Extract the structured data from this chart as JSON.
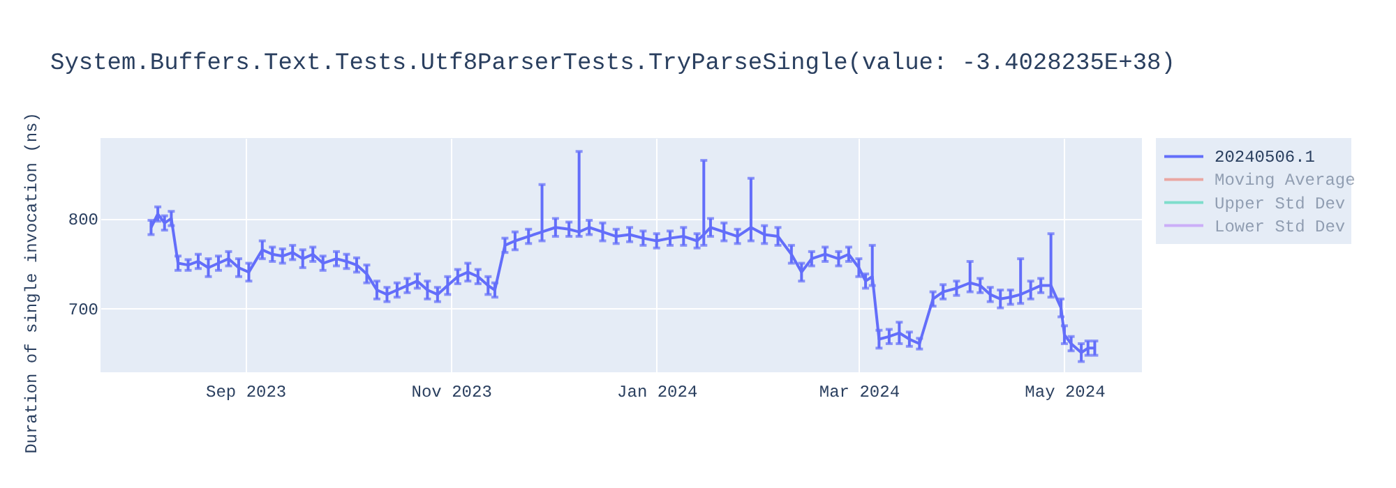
{
  "chart_data": {
    "type": "line",
    "title": "System.Buffers.Text.Tests.Utf8ParserTests.TryParseSingle(value: -3.4028235E+38)",
    "ylabel": "Duration of single invocation (ns)",
    "x": [
      "2023-08-04",
      "2023-08-06",
      "2023-08-08",
      "2023-08-10",
      "2023-08-12",
      "2023-08-15",
      "2023-08-18",
      "2023-08-21",
      "2023-08-24",
      "2023-08-27",
      "2023-08-30",
      "2023-09-02",
      "2023-09-06",
      "2023-09-09",
      "2023-09-12",
      "2023-09-15",
      "2023-09-18",
      "2023-09-21",
      "2023-09-24",
      "2023-09-28",
      "2023-10-01",
      "2023-10-04",
      "2023-10-07",
      "2023-10-10",
      "2023-10-13",
      "2023-10-16",
      "2023-10-19",
      "2023-10-22",
      "2023-10-25",
      "2023-10-28",
      "2023-10-31",
      "2023-11-03",
      "2023-11-06",
      "2023-11-09",
      "2023-11-12",
      "2023-11-14",
      "2023-11-17",
      "2023-11-20",
      "2023-11-24",
      "2023-11-28",
      "2023-12-02",
      "2023-12-06",
      "2023-12-09",
      "2023-12-12",
      "2023-12-16",
      "2023-12-20",
      "2023-12-24",
      "2023-12-28",
      "2024-01-01",
      "2024-01-05",
      "2024-01-09",
      "2024-01-13",
      "2024-01-15",
      "2024-01-17",
      "2024-01-21",
      "2024-01-25",
      "2024-01-29",
      "2024-02-02",
      "2024-02-06",
      "2024-02-10",
      "2024-02-13",
      "2024-02-16",
      "2024-02-20",
      "2024-02-24",
      "2024-02-27",
      "2024-03-01",
      "2024-03-03",
      "2024-03-05",
      "2024-03-07",
      "2024-03-10",
      "2024-03-13",
      "2024-03-16",
      "2024-03-19",
      "2024-03-23",
      "2024-03-26",
      "2024-03-30",
      "2024-04-03",
      "2024-04-06",
      "2024-04-09",
      "2024-04-12",
      "2024-04-15",
      "2024-04-18",
      "2024-04-21",
      "2024-04-24",
      "2024-04-27",
      "2024-04-30",
      "2024-05-01",
      "2024-05-03",
      "2024-05-06",
      "2024-05-08",
      "2024-05-10"
    ],
    "series": [
      {
        "name": "20240506.1",
        "color": "#636efa",
        "values": [
          790,
          805,
          795,
          800,
          750,
          748,
          752,
          745,
          750,
          755,
          745,
          740,
          765,
          760,
          758,
          762,
          755,
          760,
          750,
          755,
          752,
          748,
          738,
          720,
          715,
          720,
          725,
          730,
          720,
          715,
          725,
          735,
          740,
          735,
          725,
          720,
          770,
          775,
          780,
          785,
          790,
          788,
          785,
          790,
          785,
          780,
          782,
          778,
          775,
          778,
          780,
          775,
          782,
          790,
          785,
          780,
          790,
          782,
          780,
          760,
          740,
          755,
          760,
          755,
          760,
          745,
          730,
          735,
          665,
          668,
          672,
          665,
          660,
          710,
          718,
          722,
          728,
          725,
          715,
          710,
          712,
          715,
          720,
          725,
          725,
          700,
          670,
          660,
          650,
          655,
          655
        ],
        "errors": [
          8,
          8,
          8,
          8,
          8,
          6,
          8,
          10,
          8,
          8,
          10,
          10,
          10,
          8,
          8,
          8,
          10,
          8,
          8,
          8,
          8,
          8,
          10,
          10,
          8,
          8,
          8,
          8,
          10,
          8,
          10,
          8,
          10,
          8,
          10,
          8,
          8,
          10,
          8,
          [
            775,
            838
          ],
          10,
          8,
          [
            780,
            875
          ],
          8,
          10,
          8,
          8,
          8,
          8,
          8,
          10,
          8,
          [
            770,
            865
          ],
          10,
          10,
          8,
          [
            775,
            845
          ],
          10,
          10,
          10,
          10,
          8,
          8,
          8,
          8,
          10,
          8,
          [
            725,
            770
          ],
          10,
          8,
          12,
          8,
          6,
          8,
          8,
          8,
          [
            718,
            752
          ],
          8,
          8,
          10,
          8,
          [
            705,
            755
          ],
          10,
          8,
          [
            712,
            783
          ],
          10,
          10,
          8,
          10,
          8,
          8
        ]
      },
      {
        "name": "Moving Average",
        "color": "#ef553b",
        "values": [
          null,
          null,
          null,
          null,
          null,
          null,
          null,
          null,
          null,
          null,
          null,
          null,
          null,
          null,
          null,
          null,
          null,
          null,
          null,
          null,
          null,
          null,
          null,
          null,
          null,
          null,
          null,
          null,
          null,
          null,
          null,
          null,
          null,
          null,
          null,
          null,
          null,
          null,
          null,
          null,
          null,
          null,
          null,
          null,
          null,
          null,
          null,
          null,
          null,
          null,
          null,
          null,
          null,
          null,
          null,
          null,
          null,
          null,
          null,
          null,
          null,
          null,
          null,
          null,
          null,
          null,
          null,
          null,
          null,
          null,
          null,
          null,
          null,
          null,
          null,
          null,
          null,
          null,
          null,
          null,
          null,
          null,
          null,
          null,
          null,
          null,
          null,
          null,
          null,
          null,
          null
        ]
      },
      {
        "name": "Upper Std Dev",
        "color": "#00cc96",
        "values": [
          null,
          null,
          null,
          null,
          null,
          null,
          null,
          null,
          null,
          null,
          null,
          null,
          null,
          null,
          null,
          null,
          null,
          null,
          null,
          null,
          null,
          null,
          null,
          null,
          null,
          null,
          null,
          null,
          null,
          null,
          null,
          null,
          null,
          null,
          null,
          null,
          null,
          null,
          null,
          null,
          null,
          null,
          null,
          null,
          null,
          null,
          null,
          null,
          null,
          null,
          null,
          null,
          null,
          null,
          null,
          null,
          null,
          null,
          null,
          null,
          null,
          null,
          null,
          null,
          null,
          null,
          null,
          null,
          null,
          null,
          null,
          null,
          null,
          null,
          null,
          null,
          null,
          null,
          null,
          null,
          null,
          null,
          null,
          null,
          null,
          null,
          null,
          null,
          null,
          null,
          null
        ]
      },
      {
        "name": "Lower Std Dev",
        "color": "#ab63fa",
        "values": [
          null,
          null,
          null,
          null,
          null,
          null,
          null,
          null,
          null,
          null,
          null,
          null,
          null,
          null,
          null,
          null,
          null,
          null,
          null,
          null,
          null,
          null,
          null,
          null,
          null,
          null,
          null,
          null,
          null,
          null,
          null,
          null,
          null,
          null,
          null,
          null,
          null,
          null,
          null,
          null,
          null,
          null,
          null,
          null,
          null,
          null,
          null,
          null,
          null,
          null,
          null,
          null,
          null,
          null,
          null,
          null,
          null,
          null,
          null,
          null,
          null,
          null,
          null,
          null,
          null,
          null,
          null,
          null,
          null,
          null,
          null,
          null,
          null,
          null,
          null,
          null,
          null,
          null,
          null,
          null,
          null,
          null,
          null,
          null,
          null,
          null,
          null,
          null,
          null,
          null,
          null
        ]
      }
    ],
    "xlim": [
      "2023-07-20",
      "2024-05-24"
    ],
    "xticks": [
      {
        "value": "2023-09-01",
        "label": "Sep 2023"
      },
      {
        "value": "2023-11-01",
        "label": "Nov 2023"
      },
      {
        "value": "2024-01-01",
        "label": "Jan 2024"
      },
      {
        "value": "2024-03-01",
        "label": "Mar 2024"
      },
      {
        "value": "2024-05-01",
        "label": "May 2024"
      }
    ],
    "ylim": [
      628,
      890
    ],
    "yticks": [
      700,
      800
    ],
    "grid": true,
    "legend": "right"
  }
}
